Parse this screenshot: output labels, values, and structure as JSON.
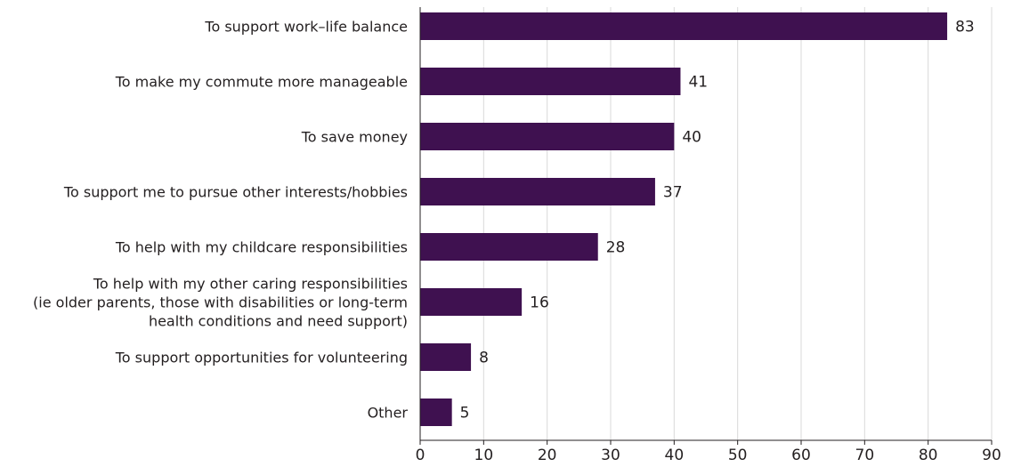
{
  "chart_data": {
    "type": "bar",
    "orientation": "horizontal",
    "categories": [
      "To support work–life balance",
      "To make my commute more manageable",
      "To save money",
      "To support me to pursue other interests/hobbies",
      "To help with my childcare responsibilities",
      "To help with my other caring responsibilities (ie older parents, those with disabilities or long-term health conditions and need support)",
      "To support opportunities for volunteering",
      "Other"
    ],
    "category_lines": [
      [
        "To support work–life balance"
      ],
      [
        "To make my commute more manageable"
      ],
      [
        "To save money"
      ],
      [
        "To support me to pursue other interests/hobbies"
      ],
      [
        "To help with my childcare responsibilities"
      ],
      [
        "To help with my other caring responsibilities",
        "(ie older parents, those with disabilities or long-term",
        "health conditions and need support)"
      ],
      [
        "To support opportunities for volunteering"
      ],
      [
        "Other"
      ]
    ],
    "values": [
      83,
      41,
      40,
      37,
      28,
      16,
      8,
      5
    ],
    "data_labels": [
      "83",
      "41",
      "40",
      "37",
      "28",
      "16",
      "8",
      "5"
    ],
    "xlim": [
      0,
      90
    ],
    "x_ticks": [
      0,
      10,
      20,
      30,
      40,
      50,
      60,
      70,
      80,
      90
    ],
    "x_tick_labels": [
      "0",
      "10",
      "20",
      "30",
      "40",
      "50",
      "60",
      "70",
      "80",
      "90"
    ],
    "title": "",
    "xlabel": "",
    "ylabel": "",
    "grid": "vertical",
    "legend": "none",
    "colors": {
      "bar": "#3f1150",
      "grid": "#d9d9d9",
      "axis": "#231f20",
      "text": "#231f20"
    }
  }
}
